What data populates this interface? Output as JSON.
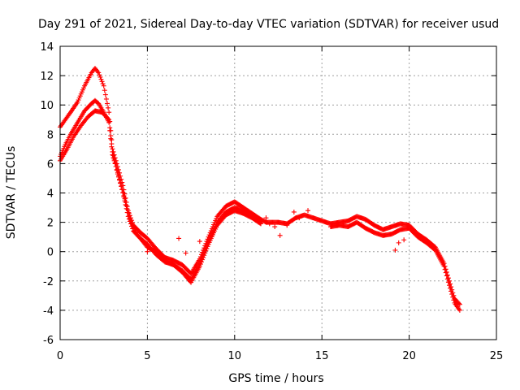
{
  "chart_data": {
    "type": "scatter",
    "title": "Day 291 of 2021, Sidereal Day-to-day VTEC variation (SDTVAR) for receiver usud",
    "xlabel": "GPS time / hours",
    "ylabel": "SDTVAR / TECUs",
    "xlim": [
      0,
      25
    ],
    "ylim": [
      -6,
      14
    ],
    "xticks": [
      0,
      5,
      10,
      15,
      20,
      25
    ],
    "xtick_labels": [
      "0",
      "5",
      "10",
      "15",
      "20",
      "25"
    ],
    "yticks": [
      -6,
      -4,
      -2,
      0,
      2,
      4,
      6,
      8,
      10,
      12,
      14
    ],
    "ytick_labels": [
      "-6",
      "-4",
      "-2",
      "0",
      "2",
      "4",
      "6",
      "8",
      "10",
      "12",
      "14"
    ],
    "grid": true,
    "marker": "+",
    "color": "#ff0000",
    "series": [
      {
        "name": "band-1",
        "x": [
          0.0,
          0.3,
          0.6,
          1.0,
          1.4,
          1.8,
          2.0,
          2.2,
          2.5,
          2.8,
          3.0,
          3.3,
          3.6,
          3.9,
          4.2,
          4.6,
          5.0,
          5.5,
          6.0,
          6.5,
          7.0,
          7.5,
          8.0,
          8.5,
          9.0,
          9.5,
          10.0,
          10.5,
          11.0,
          11.5,
          11.8,
          12.5,
          13.0,
          13.5,
          14.0,
          14.5,
          15.0,
          15.5,
          16.0,
          16.5,
          17.0,
          17.5,
          18.0,
          18.5,
          19.0,
          19.5,
          20.0,
          20.5,
          21.0,
          21.5,
          22.0,
          22.3,
          22.6,
          22.9
        ],
        "y": [
          8.5,
          9.0,
          9.5,
          10.2,
          11.3,
          12.2,
          12.5,
          12.2,
          11.3,
          9.5,
          7.0,
          5.8,
          4.5,
          2.8,
          1.8,
          1.3,
          0.9,
          0.2,
          -0.4,
          -0.6,
          -0.9,
          -1.5,
          -0.5,
          1.0,
          2.4,
          3.1,
          3.4,
          3.0,
          2.6,
          2.2,
          2.0,
          2.0,
          1.9,
          2.3,
          2.5,
          2.3,
          2.1,
          1.9,
          2.0,
          2.1,
          2.4,
          2.2,
          1.8,
          1.5,
          1.7,
          1.9,
          1.8,
          1.2,
          0.8,
          0.3,
          -0.8,
          -2.0,
          -3.2,
          -3.6
        ]
      },
      {
        "name": "band-2",
        "x": [
          0.0,
          0.3,
          0.6,
          1.0,
          1.4,
          1.8,
          2.0,
          2.2,
          2.5,
          2.8,
          3.0,
          3.3,
          3.6,
          3.9,
          4.2,
          4.6,
          5.0,
          5.5,
          6.0,
          6.5,
          7.0,
          7.5,
          8.0,
          8.5,
          9.0,
          9.5,
          10.0,
          10.5,
          11.0,
          11.5,
          15.5,
          16.0,
          16.5,
          17.0,
          17.5,
          18.0,
          18.5,
          19.0,
          19.5,
          20.0,
          20.5,
          21.0,
          21.5,
          22.0,
          22.3,
          22.6,
          22.9
        ],
        "y": [
          6.5,
          7.3,
          8.0,
          8.8,
          9.6,
          10.1,
          10.3,
          10.1,
          9.5,
          8.8,
          6.6,
          5.4,
          4.0,
          2.4,
          1.4,
          0.9,
          0.5,
          -0.2,
          -0.7,
          -0.9,
          -1.3,
          -1.9,
          -0.8,
          0.7,
          2.0,
          2.7,
          3.0,
          2.8,
          2.4,
          2.0,
          1.7,
          1.8,
          1.7,
          2.0,
          1.6,
          1.3,
          1.1,
          1.2,
          1.5,
          1.6,
          1.0,
          0.6,
          0.1,
          -1.0,
          -2.3,
          -3.5,
          -4.0
        ]
      },
      {
        "name": "band-3",
        "x": [
          0.0,
          0.4,
          0.8,
          1.2,
          1.6,
          2.0,
          2.4,
          2.8,
          3.0,
          3.3,
          3.7,
          4.0,
          4.4,
          5.0,
          5.5,
          6.0,
          6.5,
          7.0,
          7.5,
          8.0,
          8.5,
          9.0,
          9.5,
          10.0,
          10.5,
          11.0,
          11.5
        ],
        "y": [
          6.2,
          7.0,
          7.9,
          8.6,
          9.2,
          9.6,
          9.5,
          9.0,
          6.8,
          5.3,
          3.6,
          2.2,
          1.2,
          0.3,
          0.0,
          -0.6,
          -0.9,
          -1.4,
          -2.1,
          -1.0,
          0.5,
          1.8,
          2.5,
          2.8,
          2.6,
          2.3,
          1.9
        ]
      },
      {
        "name": "scattered-points",
        "x": [
          5.0,
          5.3,
          6.8,
          7.2,
          8.0,
          11.8,
          12.0,
          12.3,
          12.6,
          13.0,
          13.4,
          13.7,
          14.2,
          19.2,
          19.4,
          19.7
        ],
        "y": [
          0.0,
          0.1,
          0.9,
          -0.1,
          0.7,
          2.3,
          1.9,
          1.7,
          1.1,
          1.8,
          2.7,
          2.3,
          2.8,
          0.1,
          0.6,
          0.8
        ]
      }
    ]
  }
}
